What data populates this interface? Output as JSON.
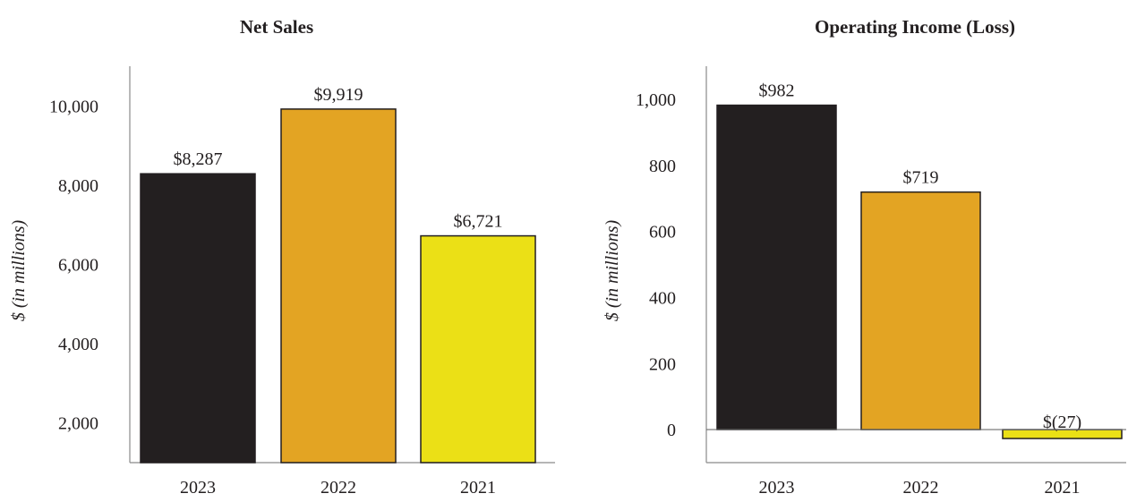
{
  "chart_data": [
    {
      "type": "bar",
      "title": "Net Sales",
      "xlabel": "",
      "ylabel": "$ (in millions)",
      "categories": [
        "2023",
        "2022",
        "2021"
      ],
      "values": [
        8287,
        9919,
        6721
      ],
      "value_labels": [
        "$8,287",
        "$9,919",
        "$6,721"
      ],
      "colors": [
        "#231f20",
        "#e3a423",
        "#ebe016"
      ],
      "ylim": [
        1000,
        11000
      ],
      "yticks": [
        2000,
        4000,
        6000,
        8000,
        10000
      ],
      "ytick_labels": [
        "2,000",
        "4,000",
        "6,000",
        "8,000",
        "10,000"
      ],
      "grid": false
    },
    {
      "type": "bar",
      "title": "Operating Income (Loss)",
      "xlabel": "",
      "ylabel": "$ (in millions)",
      "categories": [
        "2023",
        "2022",
        "2021"
      ],
      "values": [
        982,
        719,
        -27
      ],
      "value_labels": [
        "$982",
        "$719",
        "$(27)"
      ],
      "colors": [
        "#231f20",
        "#e3a423",
        "#ebe016"
      ],
      "ylim": [
        -100,
        1100
      ],
      "yticks": [
        0,
        200,
        400,
        600,
        800,
        1000
      ],
      "ytick_labels": [
        "0",
        "200",
        "400",
        "600",
        "800",
        "1,000"
      ],
      "grid": false
    }
  ]
}
